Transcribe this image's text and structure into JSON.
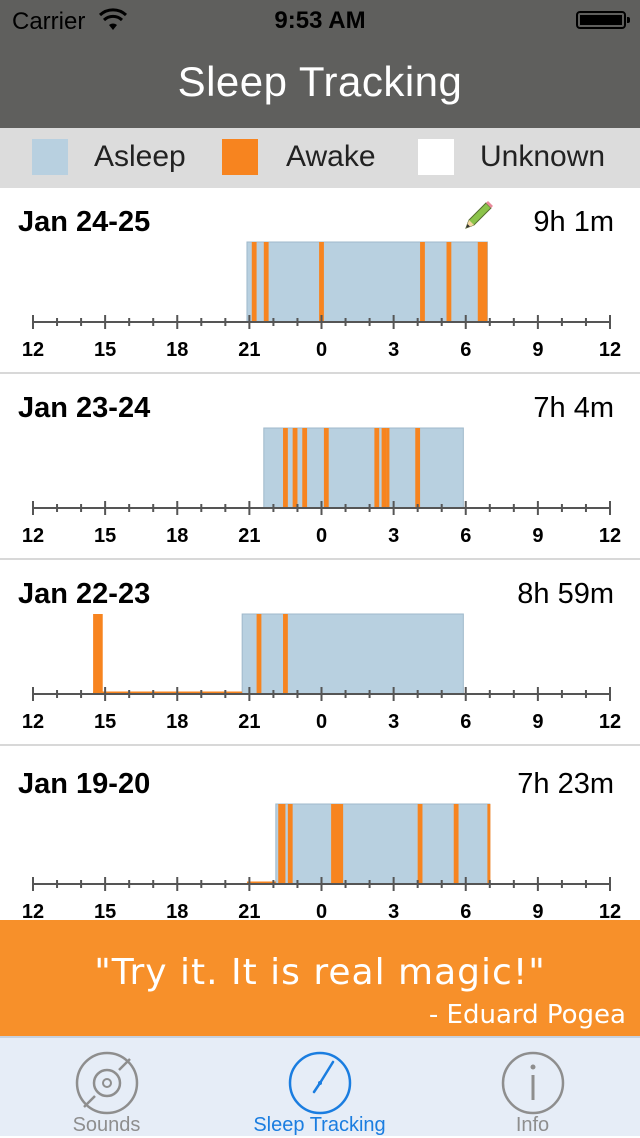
{
  "status_bar": {
    "carrier": "Carrier",
    "time": "9:53 AM"
  },
  "header": {
    "title": "Sleep Tracking"
  },
  "legend": [
    {
      "label": "Asleep",
      "color": "#b8d0e0"
    },
    {
      "label": "Awake",
      "color": "#f7841f"
    },
    {
      "label": "Unknown",
      "color": "#ffffff"
    }
  ],
  "axis_ticks": [
    "12",
    "15",
    "18",
    "21",
    "0",
    "3",
    "6",
    "9",
    "12"
  ],
  "colors": {
    "asleep": "#b8d0e0",
    "awake": "#f7841f",
    "axis": "#555555",
    "accent": "#1a7de0"
  },
  "days": [
    {
      "date": "Jan 24-25",
      "duration": "9h 1m",
      "edit_icon": "pencil-icon",
      "asleep": [
        [
          20.9,
          30.9
        ]
      ],
      "awake": [
        [
          21.1,
          21.3
        ],
        [
          21.6,
          21.8
        ],
        [
          23.9,
          24.1
        ],
        [
          28.1,
          28.3
        ],
        [
          29.2,
          29.4
        ],
        [
          30.5,
          30.9
        ]
      ]
    },
    {
      "date": "Jan 23-24",
      "duration": "7h 4m",
      "asleep": [
        [
          21.6,
          29.9
        ]
      ],
      "awake": [
        [
          22.4,
          22.6
        ],
        [
          22.8,
          23.0
        ],
        [
          23.2,
          23.4
        ],
        [
          24.1,
          24.3
        ],
        [
          26.2,
          26.4
        ],
        [
          26.5,
          26.7
        ],
        [
          26.7,
          26.8
        ],
        [
          27.9,
          28.1
        ]
      ]
    },
    {
      "date": "Jan 22-23",
      "duration": "8h 59m",
      "asleep": [
        [
          20.7,
          29.9
        ]
      ],
      "awake": [
        [
          14.5,
          14.9
        ],
        [
          21.3,
          21.5
        ],
        [
          22.4,
          22.6
        ]
      ],
      "awake_line": [
        [
          14.5,
          20.7
        ]
      ]
    },
    {
      "date": "Jan 19-20",
      "duration": "7h 23m",
      "asleep": [
        [
          22.1,
          31.0
        ]
      ],
      "awake": [
        [
          22.2,
          22.5
        ],
        [
          22.6,
          22.8
        ],
        [
          24.4,
          24.9
        ],
        [
          28.0,
          28.2
        ],
        [
          29.5,
          29.7
        ],
        [
          30.9,
          31.0
        ]
      ],
      "awake_line": [
        [
          20.9,
          22.1
        ]
      ]
    }
  ],
  "quote": {
    "text": "\"Try it. It is real magic!\"",
    "author": "- Eduard Pogea"
  },
  "tabs": [
    {
      "label": "Sounds",
      "icon": "disc-icon",
      "active": false
    },
    {
      "label": "Sleep Tracking",
      "icon": "clock-icon",
      "active": true
    },
    {
      "label": "Info",
      "icon": "info-icon",
      "active": false
    }
  ]
}
